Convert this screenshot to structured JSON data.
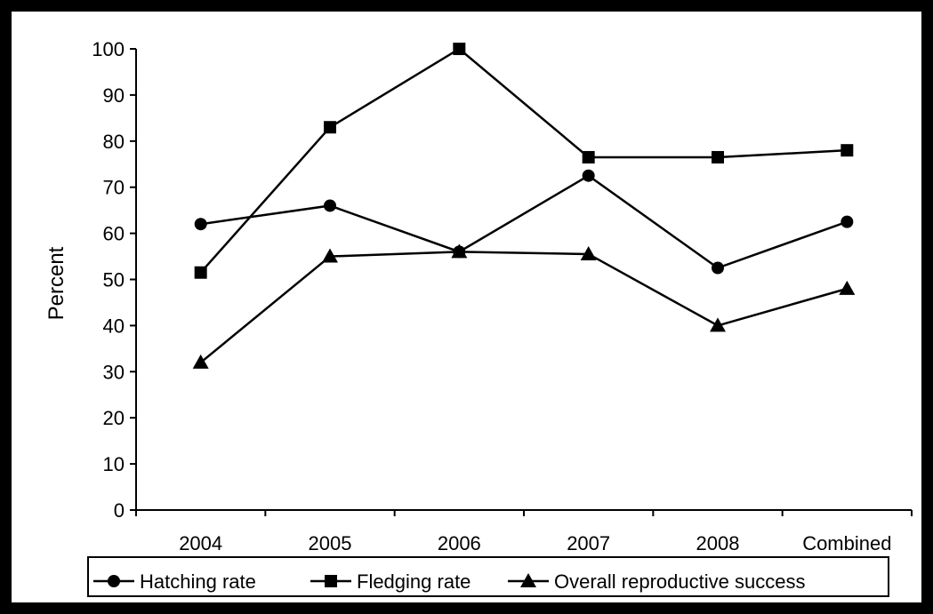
{
  "chart_data": {
    "type": "line",
    "ylabel": "Percent",
    "xlabel": "",
    "categories": [
      "2004",
      "2005",
      "2006",
      "2007",
      "2008",
      "Combined"
    ],
    "ylim": [
      0,
      100
    ],
    "yticks": [
      0,
      10,
      20,
      30,
      40,
      50,
      60,
      70,
      80,
      90,
      100
    ],
    "grid": false,
    "legend_position": "bottom",
    "series": [
      {
        "name": "Hatching rate",
        "marker": "circle",
        "values": [
          62,
          66,
          56,
          72.5,
          52.5,
          62.5
        ]
      },
      {
        "name": "Fledging rate",
        "marker": "square",
        "values": [
          51.5,
          83,
          100,
          76.5,
          76.5,
          78
        ]
      },
      {
        "name": "Overall reproductive success",
        "marker": "triangle",
        "values": [
          32,
          55,
          56,
          55.5,
          40,
          48
        ]
      }
    ],
    "colors": {
      "line": "#000000",
      "background": "#ffffff",
      "frame": "#000000"
    }
  }
}
